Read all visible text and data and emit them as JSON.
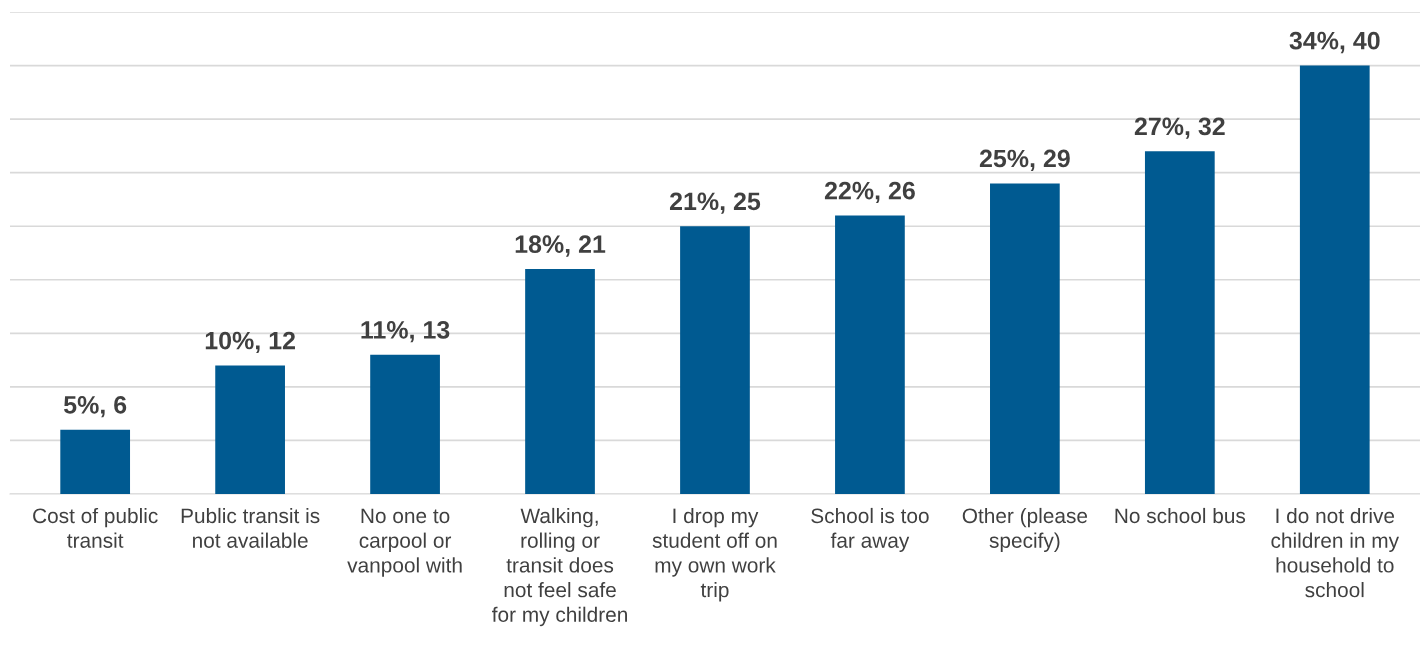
{
  "chart_data": {
    "type": "bar",
    "categories": [
      "Cost of public\ntransit",
      "Public transit is\nnot available",
      "No one to\ncarpool or\nvanpool with",
      "Walking,\nrolling or\ntransit does\nnot feel safe\nfor my children",
      "I drop my\nstudent off on\nmy own work\ntrip",
      "School is too\nfar away",
      "Other (please\nspecify)",
      "No school bus",
      "I do not drive\nchildren in my\nhousehold to\nschool"
    ],
    "values": [
      6,
      12,
      13,
      21,
      25,
      26,
      29,
      32,
      40
    ],
    "value_labels": [
      "5%, 6",
      "10%, 12",
      "11%, 13",
      "18%, 21",
      "21%, 25",
      "22%, 26",
      "25%, 29",
      "27%, 32",
      "34%, 40"
    ],
    "color": "#005a91",
    "ylim": [
      0,
      45
    ],
    "yticks": [
      {
        "value": 0,
        "label": null
      },
      {
        "value": 5,
        "label": null
      },
      {
        "value": 10,
        "label": null
      },
      {
        "value": 15,
        "label": null
      },
      {
        "value": 20,
        "label": null
      },
      {
        "value": 25,
        "label": null
      },
      {
        "value": 30,
        "label": null
      },
      {
        "value": 35,
        "label": null
      },
      {
        "value": 40,
        "label": null
      },
      {
        "value": 45,
        "label": null
      }
    ],
    "grid": "y",
    "tick_labels": "x"
  }
}
